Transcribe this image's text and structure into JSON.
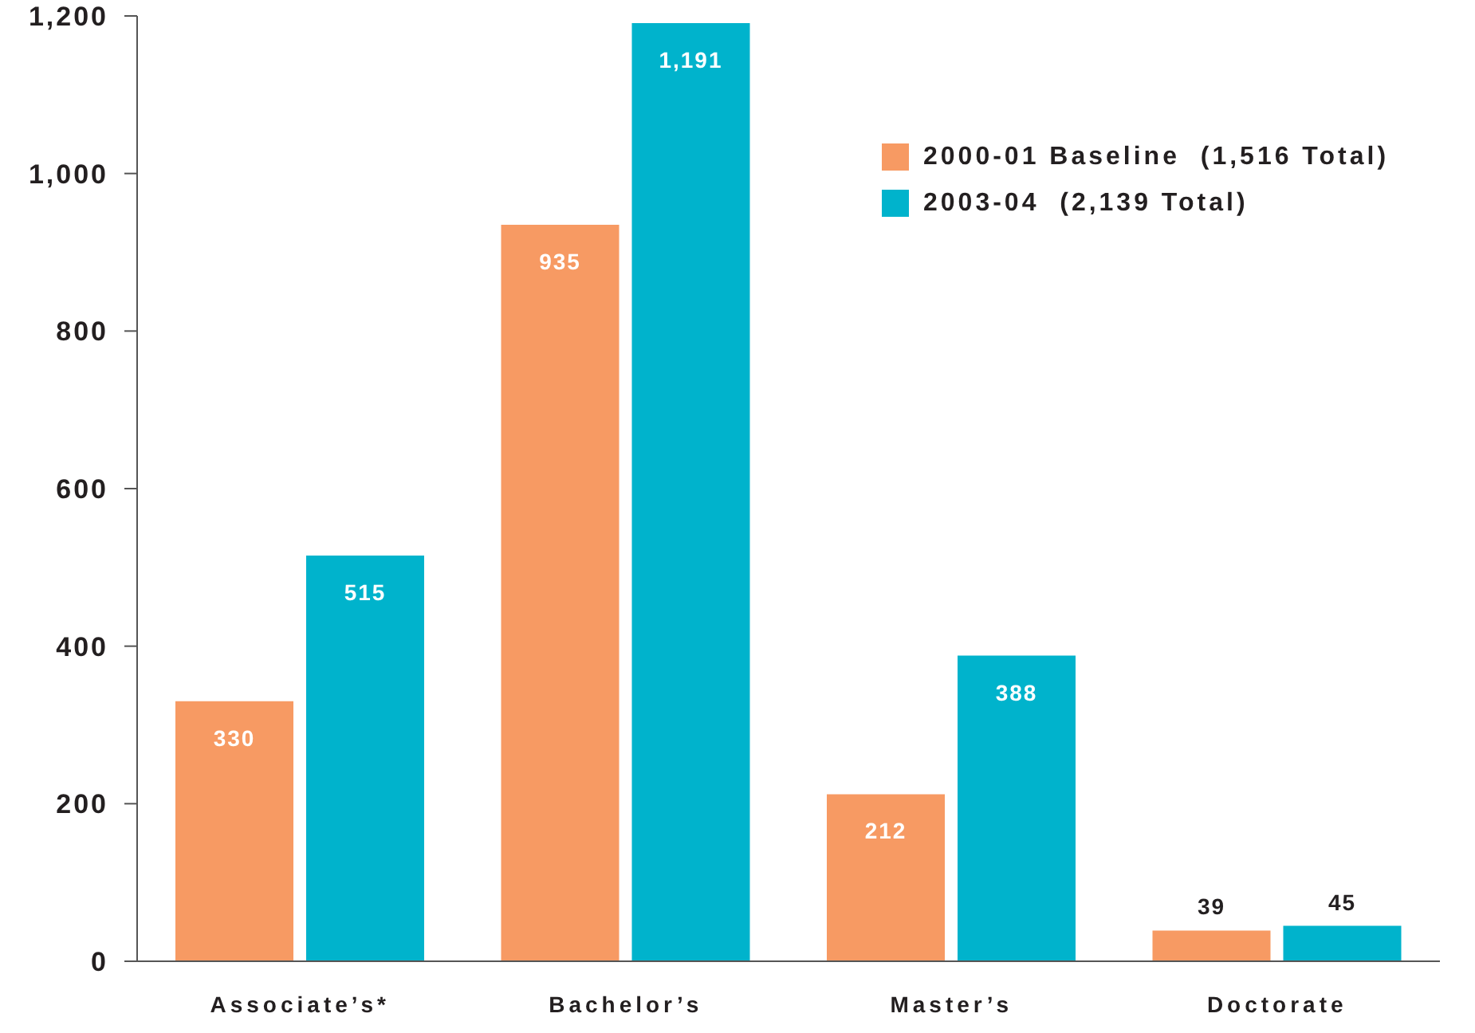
{
  "chart_data": {
    "type": "bar",
    "categories": [
      "Associate’s*",
      "Bachelor’s",
      "Master’s",
      "Doctorate"
    ],
    "series": [
      {
        "name": "2000-01 Baseline  (1,516 Total)",
        "color": "#f79a63",
        "values": [
          330,
          935,
          212,
          39
        ]
      },
      {
        "name": "2003-04  (2,139 Total)",
        "color": "#00b3cc",
        "values": [
          515,
          1191,
          388,
          45
        ],
        "value_labels": [
          "515",
          "1,191",
          "388",
          "45"
        ]
      }
    ],
    "ylim": [
      0,
      1200
    ],
    "yticks": [
      0,
      200,
      400,
      600,
      800,
      {
        "value": 1000,
        "label": "1,000"
      },
      {
        "value": 1200,
        "label": "1,200"
      }
    ],
    "data_labels": true,
    "legend": "top right",
    "grid": false
  }
}
